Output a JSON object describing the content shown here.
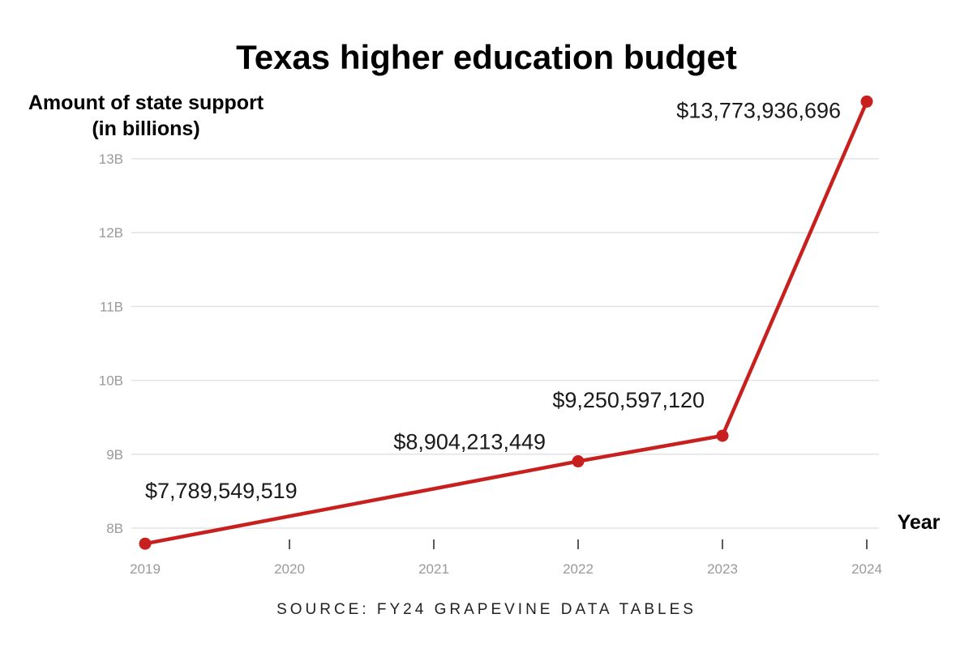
{
  "chart_data": {
    "type": "line",
    "title": "Texas higher education budget",
    "ylabel_line1": "Amount of state support",
    "ylabel_line2": "(in billions)",
    "xlabel": "Year",
    "source": "SOURCE: FY24 GRAPEVINE DATA TABLES",
    "x_ticks": [
      "2019",
      "2020",
      "2021",
      "2022",
      "2023",
      "2024"
    ],
    "y_ticks": [
      {
        "value": 8,
        "label": "8B"
      },
      {
        "value": 9,
        "label": "9B"
      },
      {
        "value": 10,
        "label": "10B"
      },
      {
        "value": 11,
        "label": "11B"
      },
      {
        "value": 12,
        "label": "12B"
      },
      {
        "value": 13,
        "label": "13B"
      }
    ],
    "ylim": [
      7.8,
      13.8
    ],
    "xlim": [
      2019,
      2024
    ],
    "grid": true,
    "series": [
      {
        "color": "#c8201f",
        "points": [
          {
            "x": 2019,
            "y": 7.789549519,
            "label": "$7,789,549,519"
          },
          {
            "x": 2022,
            "y": 8.904213449,
            "label": "$8,904,213,449"
          },
          {
            "x": 2023,
            "y": 9.25059712,
            "label": "$9,250,597,120"
          },
          {
            "x": 2024,
            "y": 13.773936696,
            "label": "$13,773,936,696"
          }
        ]
      }
    ]
  }
}
